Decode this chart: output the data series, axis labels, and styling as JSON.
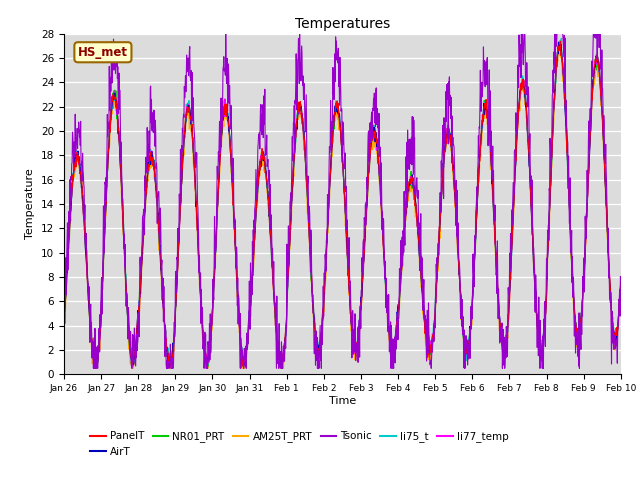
{
  "title": "Temperatures",
  "xlabel": "Time",
  "ylabel": "Temperature",
  "ylim": [
    0,
    28
  ],
  "yticks": [
    0,
    2,
    4,
    6,
    8,
    10,
    12,
    14,
    16,
    18,
    20,
    22,
    24,
    26,
    28
  ],
  "annotation": "HS_met",
  "bg_color": "#dcdcdc",
  "series_colors": {
    "PanelT": "#ff0000",
    "AirT": "#0000bb",
    "NR01_PRT": "#00cc00",
    "AM25T_PRT": "#ffaa00",
    "Tsonic": "#9900cc",
    "li75_t": "#00cccc",
    "li77_temp": "#ff00ff"
  },
  "series_linewidth": 0.8,
  "xtick_labels": [
    "Jan 26",
    "Jan 27",
    "Jan 28",
    "Jan 29",
    "Jan 30",
    "Jan 31",
    "Feb 1",
    "Feb 2",
    "Feb 3",
    "Feb 4",
    "Feb 5",
    "Feb 6",
    "Feb 7",
    "Feb 8",
    "Feb 9",
    "Feb 10"
  ],
  "num_days": 15,
  "samples_per_day": 96
}
